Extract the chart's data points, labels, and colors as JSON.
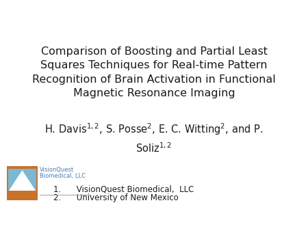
{
  "title_text": "Comparison of Boosting and Partial Least\nSquares Techniques for Real-time Pattern\nRecognition of Brain Activation in Functional\nMagnetic Resonance Imaging",
  "authors_line1": "H. Davis$^{1,2}$, S. Posse$^{2}$, E. C. Witting$^{2}$, and P.",
  "authors_line2": "Soliz$^{1,2}$",
  "affil1": "VisionQuest Biomedical,  LLC",
  "affil2": "University of New Mexico",
  "logo_text_line1": "VisionQuest",
  "logo_text_line2": "Biomedical, LLC",
  "background_color": "#ffffff",
  "text_color": "#1a1a1a",
  "title_fontsize": 11.5,
  "author_fontsize": 10.5,
  "affil_fontsize": 8.5,
  "logo_text_color": "#4a7ab5",
  "logo_text_size": 6.0
}
